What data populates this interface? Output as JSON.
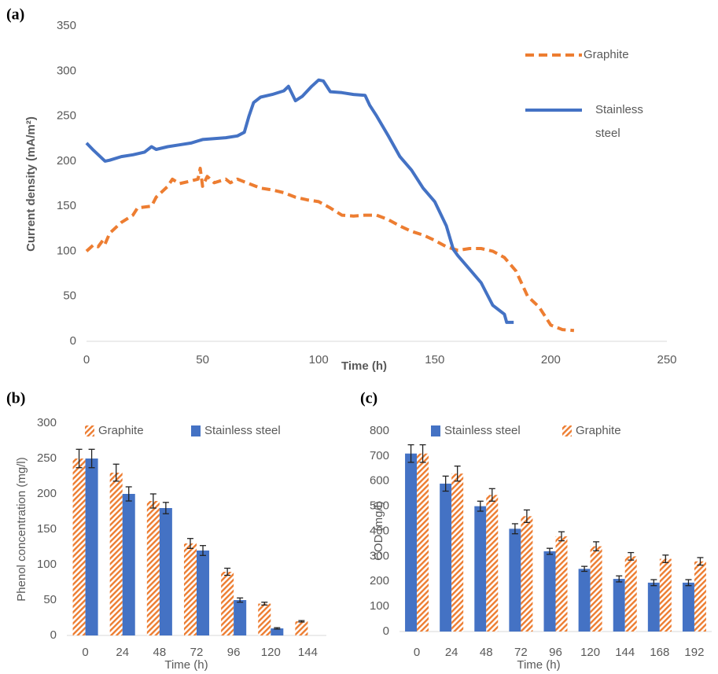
{
  "chart_data": [
    {
      "type": "line",
      "panel_label": "(a)",
      "x_label": "Time (h)",
      "y_label": "Current density (mA/m²)",
      "xlim": [
        0,
        250
      ],
      "xticks": [
        0,
        50,
        100,
        150,
        200,
        250
      ],
      "ylim": [
        0,
        350
      ],
      "yticks": [
        0,
        50,
        100,
        150,
        200,
        250,
        300,
        350
      ],
      "legend": "right",
      "series": [
        {
          "name": "Graphite",
          "color": "#ED7D31",
          "dash": true,
          "x": [
            0,
            3,
            5,
            7,
            8,
            10,
            15,
            20,
            22,
            28,
            30,
            35,
            37,
            40,
            45,
            48,
            49,
            50,
            52,
            55,
            60,
            62,
            65,
            70,
            75,
            80,
            85,
            90,
            95,
            100,
            105,
            110,
            115,
            120,
            125,
            130,
            135,
            140,
            145,
            150,
            155,
            160,
            165,
            170,
            175,
            180,
            185,
            190,
            195,
            200,
            205,
            210
          ],
          "values": [
            100,
            107,
            105,
            112,
            108,
            120,
            132,
            140,
            148,
            150,
            160,
            172,
            180,
            175,
            178,
            180,
            192,
            172,
            183,
            176,
            180,
            176,
            180,
            175,
            170,
            168,
            165,
            160,
            157,
            155,
            148,
            140,
            139,
            140,
            140,
            135,
            128,
            122,
            118,
            112,
            105,
            101,
            103,
            103,
            100,
            93,
            78,
            50,
            38,
            18,
            13,
            12
          ]
        },
        {
          "name": "Stainless steel",
          "color": "#4472C4",
          "dash": false,
          "x": [
            0,
            3,
            8,
            10,
            15,
            20,
            25,
            28,
            30,
            35,
            40,
            45,
            50,
            55,
            60,
            65,
            68,
            70,
            72,
            75,
            80,
            85,
            87,
            90,
            93,
            97,
            100,
            102,
            105,
            110,
            115,
            120,
            122,
            125,
            130,
            135,
            140,
            145,
            150,
            155,
            158,
            160,
            165,
            170,
            172,
            175,
            180,
            181,
            184
          ],
          "values": [
            220,
            212,
            200,
            201,
            205,
            207,
            210,
            216,
            213,
            216,
            218,
            220,
            224,
            225,
            226,
            228,
            232,
            250,
            265,
            271,
            274,
            278,
            283,
            267,
            272,
            283,
            290,
            289,
            277,
            276,
            274,
            273,
            262,
            250,
            228,
            205,
            190,
            170,
            155,
            128,
            102,
            95,
            80,
            65,
            55,
            40,
            30,
            21,
            21
          ]
        }
      ]
    },
    {
      "type": "bar",
      "panel_label": "(b)",
      "x_label": "Time (h)",
      "y_label": "Phenol concentration (mg/l)",
      "categories": [
        "0",
        "24",
        "48",
        "72",
        "96",
        "120",
        "144"
      ],
      "ylim": [
        0,
        300
      ],
      "yticks": [
        0,
        50,
        100,
        150,
        200,
        250,
        300
      ],
      "legend": "top",
      "series": [
        {
          "name": "Graphite",
          "color": "#ED7D31",
          "pattern": "hatch",
          "values": [
            250,
            230,
            190,
            130,
            90,
            45,
            20
          ],
          "errors": [
            13,
            12,
            10,
            7,
            5,
            2,
            1
          ]
        },
        {
          "name": "Stainless steel",
          "color": "#4472C4",
          "pattern": "solid",
          "values": [
            250,
            200,
            180,
            120,
            50,
            10,
            null
          ],
          "errors": [
            13,
            10,
            8,
            7,
            3,
            1,
            null
          ]
        }
      ]
    },
    {
      "type": "bar",
      "panel_label": "(c)",
      "x_label": "Time (h)",
      "y_label": "COD (mg/l)",
      "categories": [
        "0",
        "24",
        "48",
        "72",
        "96",
        "120",
        "144",
        "168",
        "192"
      ],
      "ylim": [
        0,
        800
      ],
      "yticks": [
        0,
        100,
        200,
        300,
        400,
        500,
        600,
        700,
        800
      ],
      "legend": "top",
      "series": [
        {
          "name": "Stainless steel",
          "color": "#4472C4",
          "pattern": "solid",
          "values": [
            710,
            590,
            500,
            410,
            320,
            250,
            210,
            195,
            195
          ],
          "errors": [
            35,
            30,
            20,
            20,
            12,
            10,
            12,
            12,
            12
          ]
        },
        {
          "name": "Graphite",
          "color": "#ED7D31",
          "pattern": "hatch",
          "values": [
            710,
            630,
            545,
            460,
            380,
            340,
            300,
            290,
            280
          ],
          "errors": [
            35,
            30,
            25,
            25,
            18,
            18,
            15,
            15,
            15
          ]
        }
      ]
    }
  ]
}
